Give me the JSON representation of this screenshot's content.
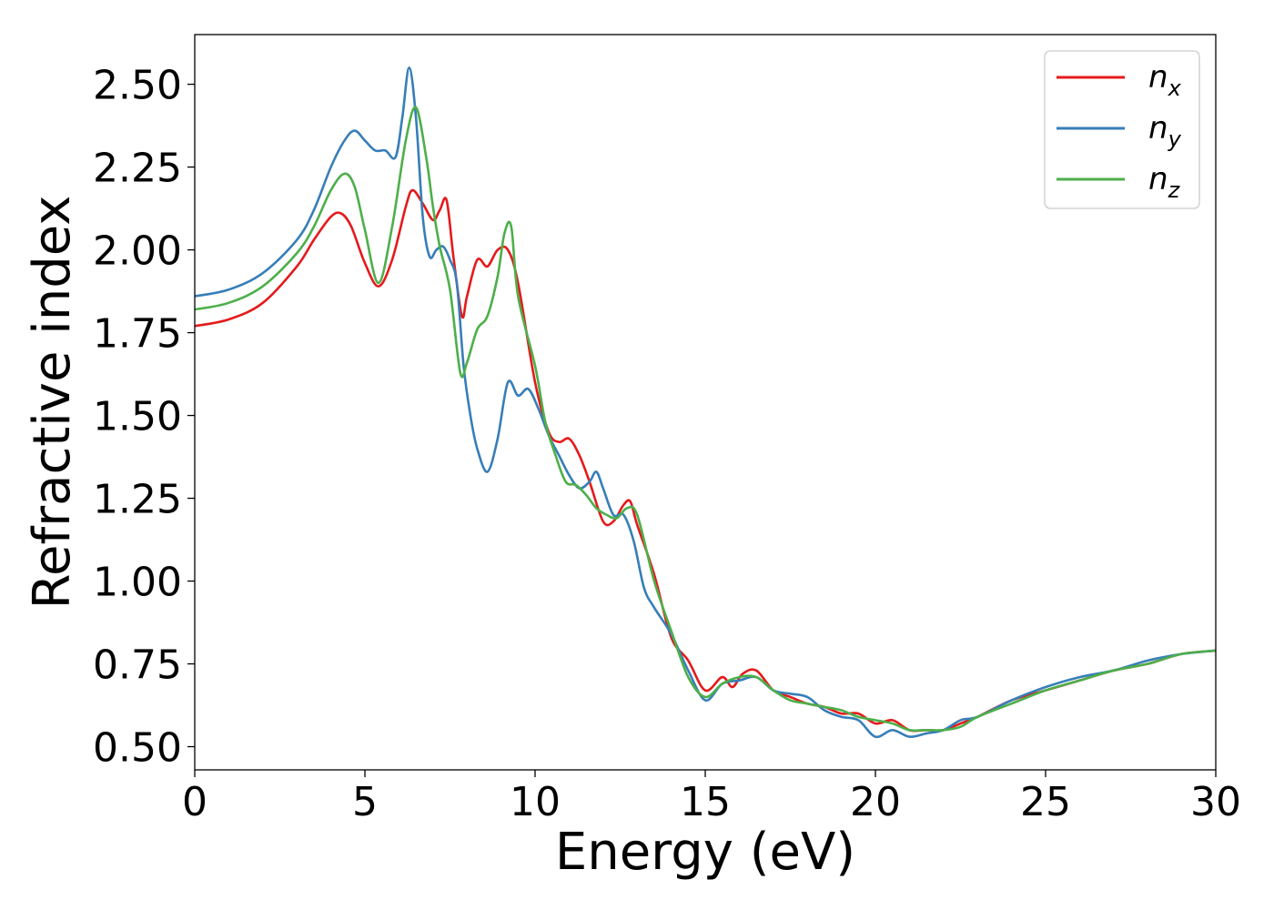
{
  "chart_data": {
    "type": "line",
    "xlabel": "Energy (eV)",
    "ylabel": "Refractive index",
    "xlim": [
      0,
      30
    ],
    "ylim": [
      0.43,
      2.65
    ],
    "xticks": [
      0,
      5,
      10,
      15,
      20,
      25,
      30
    ],
    "xtick_labels": [
      "0",
      "5",
      "10",
      "15",
      "20",
      "25",
      "30"
    ],
    "yticks": [
      0.5,
      0.75,
      1.0,
      1.25,
      1.5,
      1.75,
      2.0,
      2.25,
      2.5
    ],
    "ytick_labels": [
      "0.50",
      "0.75",
      "1.00",
      "1.25",
      "1.50",
      "1.75",
      "2.00",
      "2.25",
      "2.50"
    ],
    "grid": false,
    "legend_position": "top-right",
    "series": [
      {
        "name": "n_x",
        "label_main": "n",
        "label_sub": "x",
        "color": "#e41a1c",
        "x": [
          0,
          1,
          2,
          3,
          3.5,
          4,
          4.3,
          4.6,
          5,
          5.4,
          5.8,
          6.2,
          6.4,
          6.7,
          7.0,
          7.2,
          7.4,
          7.6,
          7.85,
          8.0,
          8.3,
          8.6,
          8.9,
          9.2,
          9.5,
          10.0,
          10.4,
          10.7,
          11.0,
          11.3,
          11.6,
          12.0,
          12.3,
          12.6,
          12.8,
          13.0,
          13.5,
          14.0,
          14.5,
          15.0,
          15.5,
          15.8,
          16.1,
          16.5,
          17.0,
          17.5,
          18.0,
          18.5,
          19.0,
          19.5,
          20.0,
          20.5,
          21.0,
          21.5,
          22.0,
          22.5,
          23.0,
          24.0,
          25.0,
          26.0,
          27.0,
          28.0,
          29.0,
          30.0
        ],
        "values": [
          1.77,
          1.79,
          1.84,
          1.95,
          2.03,
          2.1,
          2.11,
          2.07,
          1.96,
          1.89,
          1.97,
          2.13,
          2.18,
          2.14,
          2.09,
          2.12,
          2.15,
          1.98,
          1.8,
          1.86,
          1.97,
          1.95,
          2.0,
          2.0,
          1.9,
          1.6,
          1.45,
          1.42,
          1.43,
          1.38,
          1.3,
          1.18,
          1.18,
          1.23,
          1.24,
          1.17,
          1.02,
          0.83,
          0.76,
          0.67,
          0.71,
          0.68,
          0.72,
          0.73,
          0.67,
          0.65,
          0.63,
          0.62,
          0.6,
          0.6,
          0.57,
          0.58,
          0.55,
          0.55,
          0.55,
          0.57,
          0.59,
          0.64,
          0.67,
          0.7,
          0.73,
          0.75,
          0.78,
          0.79
        ]
      },
      {
        "name": "n_y",
        "label_main": "n",
        "label_sub": "y",
        "color": "#377eb8",
        "x": [
          0,
          1,
          2,
          3,
          3.5,
          4,
          4.4,
          4.7,
          5.0,
          5.3,
          5.6,
          5.9,
          6.1,
          6.3,
          6.5,
          6.7,
          6.9,
          7.1,
          7.3,
          7.5,
          7.7,
          7.9,
          8.1,
          8.3,
          8.6,
          8.9,
          9.2,
          9.5,
          9.8,
          10.1,
          10.4,
          10.7,
          11.0,
          11.3,
          11.6,
          11.8,
          12.0,
          12.3,
          12.6,
          12.9,
          13.2,
          13.5,
          14.0,
          14.5,
          15.0,
          15.5,
          16.0,
          16.5,
          17.0,
          17.5,
          18.0,
          18.5,
          19.0,
          19.5,
          20.0,
          20.5,
          21.0,
          21.5,
          22.0,
          22.5,
          23.0,
          24.0,
          25.0,
          26.0,
          27.0,
          28.0,
          29.0,
          30.0
        ],
        "values": [
          1.86,
          1.88,
          1.93,
          2.03,
          2.12,
          2.25,
          2.33,
          2.36,
          2.33,
          2.3,
          2.3,
          2.28,
          2.4,
          2.55,
          2.4,
          2.1,
          1.98,
          2.0,
          2.01,
          1.97,
          1.9,
          1.65,
          1.5,
          1.4,
          1.33,
          1.43,
          1.6,
          1.56,
          1.58,
          1.52,
          1.44,
          1.38,
          1.32,
          1.28,
          1.3,
          1.33,
          1.28,
          1.2,
          1.2,
          1.12,
          0.98,
          0.92,
          0.84,
          0.73,
          0.64,
          0.69,
          0.7,
          0.71,
          0.67,
          0.66,
          0.65,
          0.61,
          0.59,
          0.58,
          0.53,
          0.55,
          0.53,
          0.54,
          0.55,
          0.58,
          0.59,
          0.64,
          0.68,
          0.71,
          0.73,
          0.76,
          0.78,
          0.79
        ]
      },
      {
        "name": "n_z",
        "label_main": "n",
        "label_sub": "z",
        "color": "#4daf4a",
        "x": [
          0,
          1,
          2,
          3,
          3.5,
          4,
          4.4,
          4.7,
          5.0,
          5.4,
          5.8,
          6.2,
          6.5,
          6.8,
          7.0,
          7.2,
          7.5,
          7.8,
          8.0,
          8.3,
          8.6,
          8.9,
          9.1,
          9.3,
          9.5,
          10.0,
          10.3,
          10.6,
          10.9,
          11.2,
          11.5,
          11.8,
          12.1,
          12.4,
          12.7,
          13.0,
          13.5,
          14.0,
          14.5,
          15.0,
          15.5,
          16.0,
          16.5,
          17.0,
          17.5,
          18.0,
          18.5,
          19.0,
          19.5,
          20.0,
          20.5,
          21.0,
          21.5,
          22.0,
          22.5,
          23.0,
          24.0,
          25.0,
          26.0,
          27.0,
          28.0,
          29.0,
          30.0
        ],
        "values": [
          1.82,
          1.84,
          1.89,
          1.99,
          2.07,
          2.18,
          2.23,
          2.19,
          2.06,
          1.9,
          2.07,
          2.33,
          2.43,
          2.28,
          2.13,
          2.01,
          1.88,
          1.63,
          1.66,
          1.76,
          1.8,
          1.92,
          2.05,
          2.07,
          1.86,
          1.65,
          1.48,
          1.38,
          1.3,
          1.29,
          1.26,
          1.22,
          1.2,
          1.19,
          1.22,
          1.2,
          1.0,
          0.85,
          0.71,
          0.65,
          0.69,
          0.71,
          0.71,
          0.67,
          0.64,
          0.63,
          0.62,
          0.61,
          0.59,
          0.58,
          0.57,
          0.55,
          0.55,
          0.55,
          0.56,
          0.59,
          0.63,
          0.67,
          0.7,
          0.73,
          0.75,
          0.78,
          0.79
        ]
      }
    ]
  }
}
